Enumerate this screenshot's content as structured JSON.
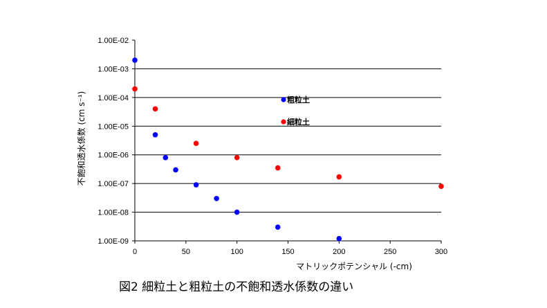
{
  "chart_data": {
    "type": "scatter",
    "title": "",
    "xlabel": "マトリックポテンシャル (-cm)",
    "ylabel": "不飽和透水係数 (cm s⁻¹)",
    "xlim": [
      0,
      300
    ],
    "ylim": [
      1e-09,
      0.01
    ],
    "yscale": "log",
    "xticks": [
      "0",
      "50",
      "100",
      "150",
      "200",
      "250",
      "300"
    ],
    "yticks": [
      "1.00E-09",
      "1.00E-08",
      "1.00E-07",
      "1.00E-06",
      "1.00E-05",
      "1.00E-04",
      "1.00E-03",
      "1.00E-02"
    ],
    "grid": "horizontal",
    "legend_placement": "center",
    "series": [
      {
        "name": "粗粒土",
        "color": "#0000ff",
        "points": [
          [
            0,
            0.002
          ],
          [
            20,
            5e-06
          ],
          [
            30,
            8e-07
          ],
          [
            40,
            3e-07
          ],
          [
            60,
            9e-08
          ],
          [
            80,
            3e-08
          ],
          [
            100,
            1e-08
          ],
          [
            140,
            3e-09
          ],
          [
            200,
            1.2e-09
          ]
        ]
      },
      {
        "name": "細粒土",
        "color": "#ff0000",
        "points": [
          [
            0,
            0.0002
          ],
          [
            20,
            4e-05
          ],
          [
            60,
            2.5e-06
          ],
          [
            100,
            8e-07
          ],
          [
            140,
            3.5e-07
          ],
          [
            200,
            1.7e-07
          ],
          [
            300,
            8e-08
          ]
        ]
      }
    ]
  },
  "caption": "図2  細粒土と粗粒土の不飽和透水係数の違い"
}
